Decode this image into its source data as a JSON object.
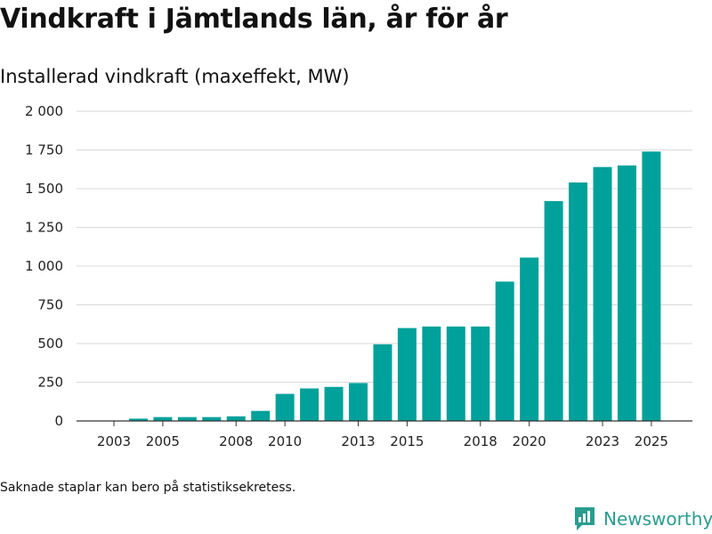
{
  "title": "Vindkraft i Jämtlands län, år för år",
  "footnote": "Saknade staplar kan bero på statistiksekretess.",
  "brand": {
    "name": "Newsworthy",
    "logo_icon": "newsworthy-logo-icon"
  },
  "colors": {
    "bar": "#00a19a",
    "grid": "#d9d9d9",
    "axis": "#333333",
    "brand": "#2a9d8f"
  },
  "chart_data": {
    "type": "bar",
    "title": "Vindkraft i Jämtlands län, år för år",
    "subtitle": "Installerad vindkraft (maxeffekt, MW)",
    "xlabel": "",
    "ylabel": "Installerad vindkraft (maxeffekt, MW)",
    "ylim": [
      0,
      2000
    ],
    "grid": true,
    "y_ticks": [
      0,
      250,
      500,
      750,
      1000,
      1250,
      1500,
      1750,
      2000
    ],
    "y_tick_labels": [
      "0",
      "250",
      "500",
      "750",
      "1 000",
      "1 250",
      "1 500",
      "1 750",
      "2 000"
    ],
    "x_tick_labels": [
      "2003",
      "2005",
      "2008",
      "2010",
      "2013",
      "2015",
      "2018",
      "2020",
      "2023",
      "2025"
    ],
    "categories": [
      "2003",
      "2004",
      "2005",
      "2006",
      "2007",
      "2008",
      "2009",
      "2010",
      "2011",
      "2012",
      "2013",
      "2014",
      "2015",
      "2016",
      "2017",
      "2018",
      "2019",
      "2020",
      "2021",
      "2022",
      "2023",
      "2024",
      "2025"
    ],
    "values": [
      null,
      15,
      25,
      25,
      25,
      30,
      65,
      175,
      210,
      220,
      245,
      495,
      600,
      610,
      610,
      610,
      900,
      1055,
      1420,
      1540,
      1640,
      1650,
      1740
    ]
  }
}
